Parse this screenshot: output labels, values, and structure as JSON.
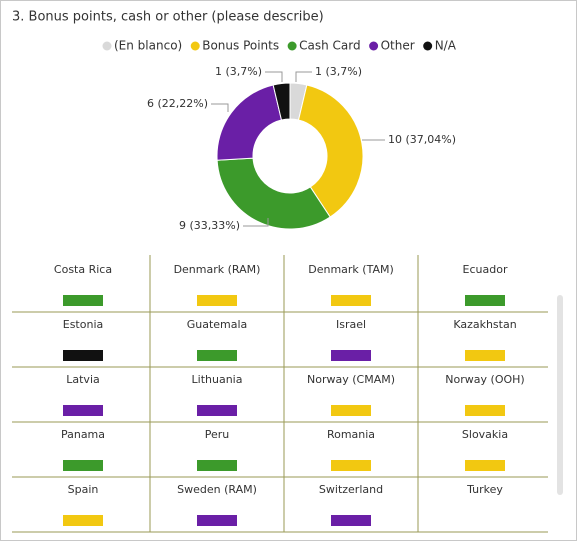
{
  "chart_data": {
    "type": "donut",
    "title": "3. Bonus points, cash or other (please describe)",
    "categories": [
      "(En blanco)",
      "Bonus Points",
      "Cash Card",
      "Other",
      "N/A"
    ],
    "values": [
      1,
      10,
      9,
      6,
      1
    ],
    "value_labels": [
      "1 (3,7%)",
      "10 (37,04%)",
      "9 (33,33%)",
      "6 (22,22%)",
      "1 (3,7%)"
    ],
    "colors": [
      "#d9d9d9",
      "#f2c811",
      "#3c9a2b",
      "#6a1fa6",
      "#111111"
    ],
    "legend": "top"
  },
  "table": {
    "cells": [
      {
        "label": "Costa Rica",
        "color": "#3c9a2b"
      },
      {
        "label": "Denmark (RAM)",
        "color": "#f2c811"
      },
      {
        "label": "Denmark (TAM)",
        "color": "#f2c811"
      },
      {
        "label": "Ecuador",
        "color": "#3c9a2b"
      },
      {
        "label": "Estonia",
        "color": "#111111"
      },
      {
        "label": "Guatemala",
        "color": "#3c9a2b"
      },
      {
        "label": "Israel",
        "color": "#6a1fa6"
      },
      {
        "label": "Kazakhstan",
        "color": "#f2c811"
      },
      {
        "label": "Latvia",
        "color": "#6a1fa6"
      },
      {
        "label": "Lithuania",
        "color": "#6a1fa6"
      },
      {
        "label": "Norway (CMAM)",
        "color": "#f2c811"
      },
      {
        "label": "Norway (OOH)",
        "color": "#f2c811"
      },
      {
        "label": "Panama",
        "color": "#3c9a2b"
      },
      {
        "label": "Peru",
        "color": "#3c9a2b"
      },
      {
        "label": "Romania",
        "color": "#f2c811"
      },
      {
        "label": "Slovakia",
        "color": "#f2c811"
      },
      {
        "label": "Spain",
        "color": "#f2c811"
      },
      {
        "label": "Sweden (RAM)",
        "color": "#6a1fa6"
      },
      {
        "label": "Switzerland",
        "color": "#6a1fa6"
      },
      {
        "label": "Turkey",
        "color": null
      }
    ]
  }
}
